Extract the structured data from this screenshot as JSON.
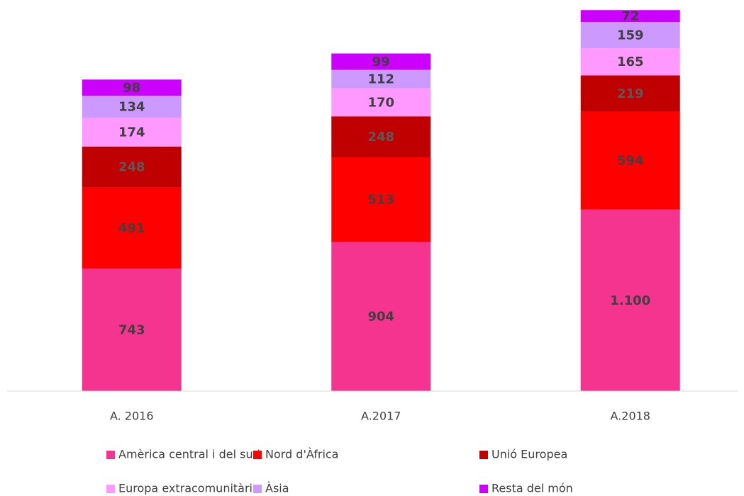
{
  "chart_data": {
    "type": "stacked_bar",
    "categories": [
      "A. 2016",
      "A.2017",
      "A.2018"
    ],
    "series": [
      {
        "name": "Amèrica central i del sud",
        "color": "#f5348f",
        "values": [
          743,
          904,
          1100
        ],
        "value_labels": [
          "743",
          "904",
          "1.100"
        ]
      },
      {
        "name": "Nord d'Àfrica",
        "color": "#ff0000",
        "values": [
          491,
          513,
          594
        ]
      },
      {
        "name": "Unió Europea",
        "color": "#c00000",
        "values": [
          248,
          248,
          219
        ]
      },
      {
        "name": "Europa extracomunitària",
        "color": "#ff99ff",
        "values": [
          174,
          170,
          165
        ]
      },
      {
        "name": "Àsia",
        "color": "#cc99ff",
        "values": [
          134,
          112,
          159
        ]
      },
      {
        "name": "Resta del món",
        "color": "#cc00ff",
        "values": [
          98,
          99,
          72
        ]
      }
    ],
    "ylim": [
      0,
      2310
    ],
    "legend": "bottom"
  }
}
